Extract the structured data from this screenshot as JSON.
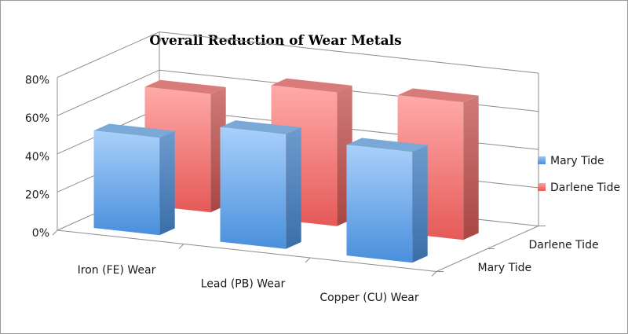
{
  "chart_data": {
    "type": "bar",
    "title": "Overall Reduction of Wear Metals",
    "categories": [
      "Iron (FE) Wear",
      "Lead (PB) Wear",
      "Copper (CU) Wear"
    ],
    "series": [
      {
        "name": "Mary Tide",
        "values": [
          51,
          60,
          58
        ]
      },
      {
        "name": "Darlene Tide",
        "values": [
          62,
          70,
          72
        ]
      }
    ],
    "depth_labels": [
      "Mary Tide",
      "Darlene Tide"
    ],
    "y_ticks": [
      "0%",
      "20%",
      "40%",
      "60%",
      "80%"
    ],
    "ylim": [
      0,
      80
    ],
    "grid": true,
    "legend_position": "right",
    "colors": {
      "Mary Tide": "#5b9bd5",
      "Darlene Tide": "#e0605e"
    }
  }
}
